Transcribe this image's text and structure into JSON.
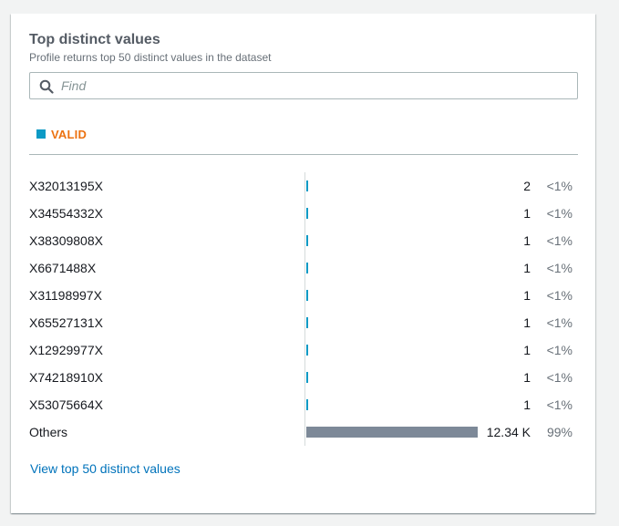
{
  "panel": {
    "title": "Top distinct values",
    "subtitle": "Profile returns top 50 distinct values in the dataset"
  },
  "search": {
    "placeholder": "Find",
    "value": "",
    "icon": "search-icon"
  },
  "tabs": [
    {
      "label": "VALID",
      "swatch_color": "#0d9ac5",
      "label_color": "#ec7211",
      "active": true
    }
  ],
  "colors": {
    "small_bar": "#0d9ac5",
    "others_bar": "#7d8998"
  },
  "rows": [
    {
      "value": "X32013195X",
      "count": "2",
      "count_num": 2,
      "percent": "<1%"
    },
    {
      "value": "X34554332X",
      "count": "1",
      "count_num": 1,
      "percent": "<1%"
    },
    {
      "value": "X38309808X",
      "count": "1",
      "count_num": 1,
      "percent": "<1%"
    },
    {
      "value": "X6671488X",
      "count": "1",
      "count_num": 1,
      "percent": "<1%"
    },
    {
      "value": "X31198997X",
      "count": "1",
      "count_num": 1,
      "percent": "<1%"
    },
    {
      "value": "X65527131X",
      "count": "1",
      "count_num": 1,
      "percent": "<1%"
    },
    {
      "value": "X12929977X",
      "count": "1",
      "count_num": 1,
      "percent": "<1%"
    },
    {
      "value": "X74218910X",
      "count": "1",
      "count_num": 1,
      "percent": "<1%"
    },
    {
      "value": "X53075664X",
      "count": "1",
      "count_num": 1,
      "percent": "<1%"
    },
    {
      "value": "Others",
      "count": "12.34 K",
      "count_num": 12340,
      "percent": "99%",
      "is_others": true
    }
  ],
  "link": {
    "label": "View top 50 distinct values"
  }
}
